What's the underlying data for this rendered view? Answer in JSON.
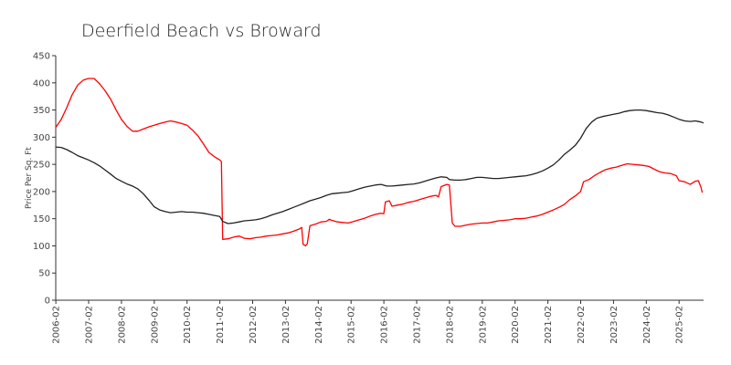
{
  "chart_data": {
    "type": "line",
    "title": "Deerfield Beach vs Broward",
    "ylabel": "Price Per Sq. Ft",
    "xlabel": "",
    "ylim": [
      0,
      450
    ],
    "yticks": [
      0,
      50,
      100,
      150,
      200,
      250,
      300,
      350,
      400,
      450
    ],
    "xlim": [
      2006.08,
      2025.83
    ],
    "xtick_labels": [
      "2006-02",
      "2007-02",
      "2008-02",
      "2009-02",
      "2010-02",
      "2011-02",
      "2012-02",
      "2013-02",
      "2014-02",
      "2015-02",
      "2016-02",
      "2017-02",
      "2018-02",
      "2019-02",
      "2020-02",
      "2021-02",
      "2022-02",
      "2023-02",
      "2024-02",
      "2025-02"
    ],
    "grid": false,
    "legend": "none",
    "series": [
      {
        "color": "#ff0000",
        "points": [
          [
            2006.08,
            318
          ],
          [
            2006.25,
            333
          ],
          [
            2006.42,
            355
          ],
          [
            2006.58,
            378
          ],
          [
            2006.75,
            396
          ],
          [
            2006.92,
            405
          ],
          [
            2007.08,
            408
          ],
          [
            2007.25,
            408
          ],
          [
            2007.42,
            398
          ],
          [
            2007.58,
            386
          ],
          [
            2007.75,
            370
          ],
          [
            2007.92,
            350
          ],
          [
            2008.08,
            333
          ],
          [
            2008.25,
            320
          ],
          [
            2008.42,
            311
          ],
          [
            2008.58,
            311
          ],
          [
            2008.75,
            315
          ],
          [
            2008.92,
            319
          ],
          [
            2009.08,
            322
          ],
          [
            2009.25,
            325
          ],
          [
            2009.42,
            328
          ],
          [
            2009.58,
            330
          ],
          [
            2009.75,
            328
          ],
          [
            2009.92,
            325
          ],
          [
            2010.08,
            322
          ],
          [
            2010.25,
            313
          ],
          [
            2010.42,
            302
          ],
          [
            2010.58,
            288
          ],
          [
            2010.75,
            272
          ],
          [
            2010.92,
            264
          ],
          [
            2011.08,
            258
          ],
          [
            2011.13,
            255
          ],
          [
            2011.17,
            112
          ],
          [
            2011.33,
            113
          ],
          [
            2011.5,
            116
          ],
          [
            2011.67,
            118
          ],
          [
            2011.83,
            114
          ],
          [
            2012.0,
            113
          ],
          [
            2012.17,
            115
          ],
          [
            2012.33,
            116
          ],
          [
            2012.5,
            118
          ],
          [
            2012.67,
            119
          ],
          [
            2012.83,
            120
          ],
          [
            2013.0,
            122
          ],
          [
            2013.17,
            124
          ],
          [
            2013.33,
            127
          ],
          [
            2013.5,
            131
          ],
          [
            2013.58,
            134
          ],
          [
            2013.62,
            103
          ],
          [
            2013.7,
            100
          ],
          [
            2013.75,
            104
          ],
          [
            2013.83,
            137
          ],
          [
            2014.0,
            140
          ],
          [
            2014.17,
            144
          ],
          [
            2014.33,
            145
          ],
          [
            2014.42,
            149
          ],
          [
            2014.5,
            147
          ],
          [
            2014.67,
            144
          ],
          [
            2014.83,
            143
          ],
          [
            2015.0,
            142
          ],
          [
            2015.17,
            145
          ],
          [
            2015.33,
            148
          ],
          [
            2015.5,
            151
          ],
          [
            2015.67,
            155
          ],
          [
            2015.83,
            158
          ],
          [
            2016.0,
            160
          ],
          [
            2016.08,
            159
          ],
          [
            2016.13,
            181
          ],
          [
            2016.25,
            183
          ],
          [
            2016.33,
            173
          ],
          [
            2016.5,
            175
          ],
          [
            2016.67,
            177
          ],
          [
            2016.83,
            180
          ],
          [
            2017.0,
            182
          ],
          [
            2017.17,
            185
          ],
          [
            2017.33,
            188
          ],
          [
            2017.5,
            191
          ],
          [
            2017.67,
            193
          ],
          [
            2017.75,
            190
          ],
          [
            2017.83,
            209
          ],
          [
            2018.0,
            213
          ],
          [
            2018.08,
            212
          ],
          [
            2018.17,
            142
          ],
          [
            2018.25,
            136
          ],
          [
            2018.42,
            136
          ],
          [
            2018.58,
            138
          ],
          [
            2018.75,
            140
          ],
          [
            2018.92,
            141
          ],
          [
            2019.08,
            142
          ],
          [
            2019.25,
            142
          ],
          [
            2019.42,
            144
          ],
          [
            2019.58,
            146
          ],
          [
            2019.75,
            147
          ],
          [
            2019.92,
            148
          ],
          [
            2020.08,
            150
          ],
          [
            2020.25,
            150
          ],
          [
            2020.42,
            151
          ],
          [
            2020.58,
            153
          ],
          [
            2020.75,
            155
          ],
          [
            2020.92,
            158
          ],
          [
            2021.08,
            162
          ],
          [
            2021.25,
            166
          ],
          [
            2021.42,
            171
          ],
          [
            2021.58,
            176
          ],
          [
            2021.75,
            185
          ],
          [
            2021.92,
            192
          ],
          [
            2022.08,
            200
          ],
          [
            2022.17,
            218
          ],
          [
            2022.33,
            222
          ],
          [
            2022.5,
            229
          ],
          [
            2022.67,
            235
          ],
          [
            2022.83,
            240
          ],
          [
            2023.0,
            243
          ],
          [
            2023.17,
            245
          ],
          [
            2023.33,
            248
          ],
          [
            2023.5,
            251
          ],
          [
            2023.67,
            250
          ],
          [
            2023.83,
            249
          ],
          [
            2024.0,
            248
          ],
          [
            2024.17,
            246
          ],
          [
            2024.33,
            241
          ],
          [
            2024.5,
            236
          ],
          [
            2024.67,
            234
          ],
          [
            2024.83,
            233
          ],
          [
            2025.0,
            229
          ],
          [
            2025.08,
            220
          ],
          [
            2025.25,
            218
          ],
          [
            2025.42,
            213
          ],
          [
            2025.58,
            219
          ],
          [
            2025.67,
            220
          ],
          [
            2025.75,
            208
          ],
          [
            2025.79,
            198
          ]
        ]
      },
      {
        "color": "#222222",
        "points": [
          [
            2006.08,
            282
          ],
          [
            2006.25,
            281
          ],
          [
            2006.42,
            277
          ],
          [
            2006.58,
            272
          ],
          [
            2006.75,
            266
          ],
          [
            2006.92,
            262
          ],
          [
            2007.08,
            258
          ],
          [
            2007.25,
            253
          ],
          [
            2007.42,
            247
          ],
          [
            2007.58,
            240
          ],
          [
            2007.75,
            232
          ],
          [
            2007.92,
            224
          ],
          [
            2008.08,
            219
          ],
          [
            2008.25,
            214
          ],
          [
            2008.42,
            210
          ],
          [
            2008.58,
            205
          ],
          [
            2008.75,
            196
          ],
          [
            2008.92,
            184
          ],
          [
            2009.08,
            172
          ],
          [
            2009.25,
            166
          ],
          [
            2009.42,
            163
          ],
          [
            2009.58,
            161
          ],
          [
            2009.75,
            162
          ],
          [
            2009.92,
            163
          ],
          [
            2010.08,
            162
          ],
          [
            2010.25,
            162
          ],
          [
            2010.42,
            161
          ],
          [
            2010.58,
            160
          ],
          [
            2010.75,
            158
          ],
          [
            2010.92,
            156
          ],
          [
            2011.08,
            154
          ],
          [
            2011.17,
            145
          ],
          [
            2011.33,
            141
          ],
          [
            2011.5,
            142
          ],
          [
            2011.67,
            144
          ],
          [
            2011.83,
            146
          ],
          [
            2012.0,
            147
          ],
          [
            2012.17,
            148
          ],
          [
            2012.33,
            150
          ],
          [
            2012.5,
            153
          ],
          [
            2012.67,
            157
          ],
          [
            2012.83,
            160
          ],
          [
            2013.0,
            163
          ],
          [
            2013.17,
            167
          ],
          [
            2013.33,
            171
          ],
          [
            2013.5,
            175
          ],
          [
            2013.67,
            179
          ],
          [
            2013.83,
            183
          ],
          [
            2014.0,
            186
          ],
          [
            2014.17,
            189
          ],
          [
            2014.33,
            193
          ],
          [
            2014.5,
            196
          ],
          [
            2014.67,
            197
          ],
          [
            2014.83,
            198
          ],
          [
            2015.0,
            199
          ],
          [
            2015.17,
            202
          ],
          [
            2015.33,
            205
          ],
          [
            2015.5,
            208
          ],
          [
            2015.67,
            210
          ],
          [
            2015.83,
            212
          ],
          [
            2016.0,
            213
          ],
          [
            2016.17,
            210
          ],
          [
            2016.33,
            210
          ],
          [
            2016.5,
            211
          ],
          [
            2016.67,
            212
          ],
          [
            2016.83,
            213
          ],
          [
            2017.0,
            214
          ],
          [
            2017.17,
            216
          ],
          [
            2017.33,
            219
          ],
          [
            2017.5,
            222
          ],
          [
            2017.67,
            225
          ],
          [
            2017.83,
            227
          ],
          [
            2018.0,
            226
          ],
          [
            2018.08,
            222
          ],
          [
            2018.25,
            221
          ],
          [
            2018.42,
            221
          ],
          [
            2018.58,
            222
          ],
          [
            2018.75,
            224
          ],
          [
            2018.92,
            226
          ],
          [
            2019.08,
            226
          ],
          [
            2019.25,
            225
          ],
          [
            2019.42,
            224
          ],
          [
            2019.58,
            224
          ],
          [
            2019.75,
            225
          ],
          [
            2019.92,
            226
          ],
          [
            2020.08,
            227
          ],
          [
            2020.25,
            228
          ],
          [
            2020.42,
            229
          ],
          [
            2020.58,
            231
          ],
          [
            2020.75,
            234
          ],
          [
            2020.92,
            238
          ],
          [
            2021.08,
            243
          ],
          [
            2021.25,
            249
          ],
          [
            2021.42,
            258
          ],
          [
            2021.58,
            268
          ],
          [
            2021.75,
            276
          ],
          [
            2021.92,
            285
          ],
          [
            2022.08,
            298
          ],
          [
            2022.25,
            316
          ],
          [
            2022.42,
            328
          ],
          [
            2022.58,
            335
          ],
          [
            2022.75,
            338
          ],
          [
            2022.92,
            340
          ],
          [
            2023.08,
            342
          ],
          [
            2023.25,
            344
          ],
          [
            2023.42,
            347
          ],
          [
            2023.58,
            349
          ],
          [
            2023.75,
            350
          ],
          [
            2023.92,
            350
          ],
          [
            2024.08,
            349
          ],
          [
            2024.25,
            347
          ],
          [
            2024.42,
            345
          ],
          [
            2024.58,
            344
          ],
          [
            2024.75,
            341
          ],
          [
            2024.92,
            337
          ],
          [
            2025.08,
            333
          ],
          [
            2025.25,
            330
          ],
          [
            2025.42,
            329
          ],
          [
            2025.58,
            330
          ],
          [
            2025.75,
            328
          ],
          [
            2025.83,
            326
          ]
        ]
      }
    ]
  }
}
